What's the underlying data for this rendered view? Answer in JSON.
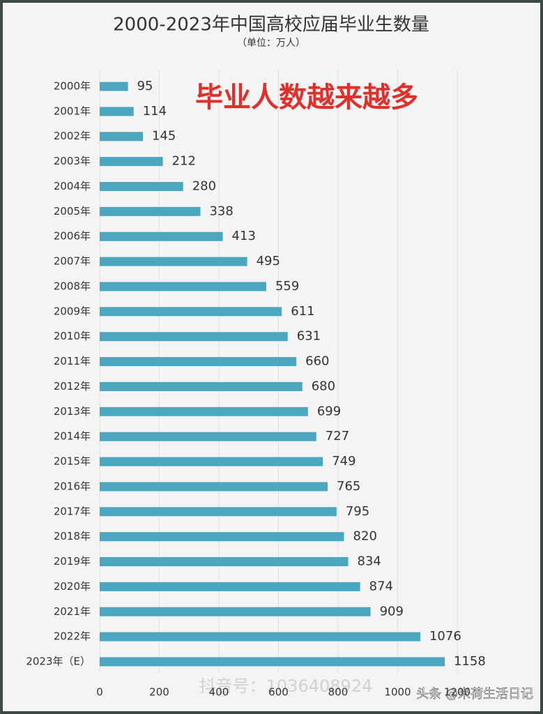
{
  "chart_data": {
    "type": "barh",
    "title": "2000-2023年中国高校应届毕业生数量",
    "subtitle": "（单位：万人）",
    "annotation": "毕业人数越来越多",
    "watermarks": [
      "抖音号：1036408924",
      "头条 @米荷生活日记"
    ],
    "categories": [
      "2000年",
      "2001年",
      "2002年",
      "2003年",
      "2004年",
      "2005年",
      "2006年",
      "2007年",
      "2008年",
      "2009年",
      "2010年",
      "2011年",
      "2012年",
      "2013年",
      "2014年",
      "2015年",
      "2016年",
      "2017年",
      "2018年",
      "2019年",
      "2020年",
      "2021年",
      "2022年",
      "2023年（E）"
    ],
    "values": [
      95,
      114,
      145,
      212,
      280,
      338,
      413,
      495,
      559,
      611,
      631,
      660,
      680,
      699,
      727,
      749,
      765,
      795,
      820,
      834,
      874,
      909,
      1076,
      1158
    ],
    "color": "#4ba6bf",
    "xlim": [
      0,
      1200
    ],
    "xticks": [
      0,
      200,
      400,
      600,
      800,
      1000,
      1200
    ],
    "grid": true
  }
}
